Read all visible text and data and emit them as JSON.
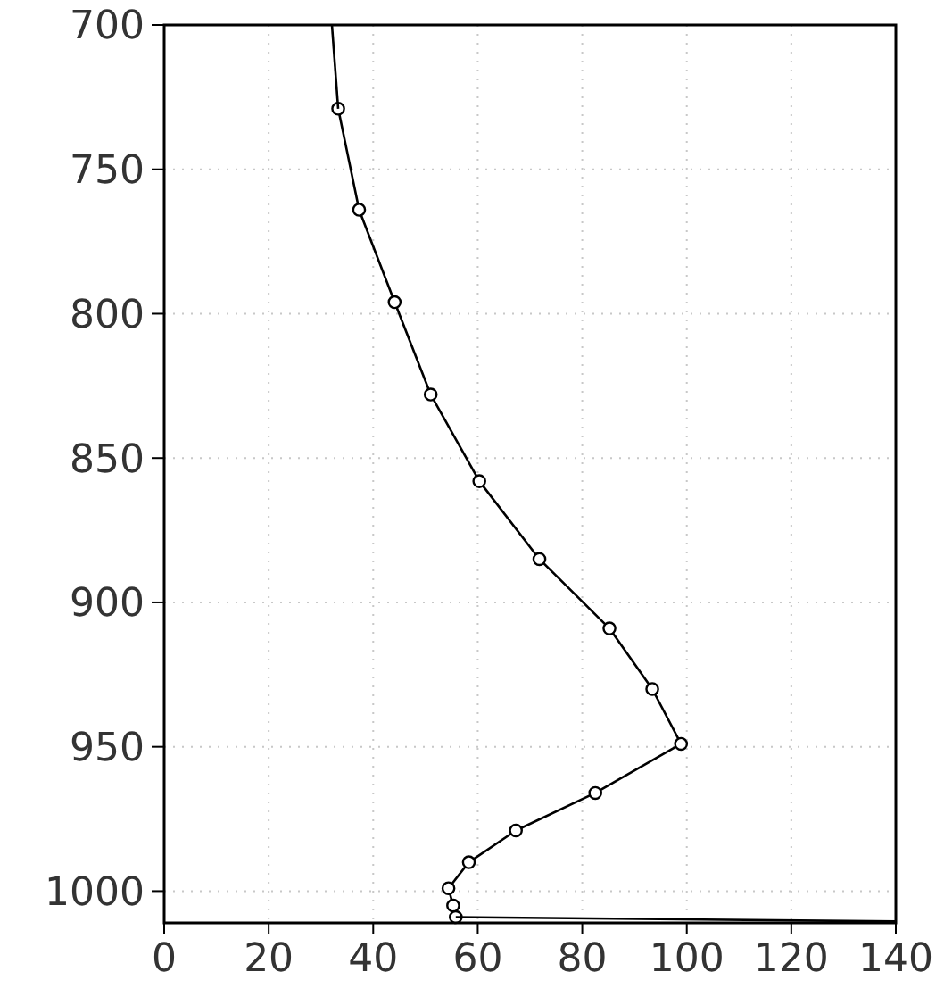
{
  "chart_data": {
    "type": "line",
    "xlim": [
      0,
      140
    ],
    "xticks": [
      0,
      20,
      40,
      60,
      80,
      100,
      120,
      140
    ],
    "ylim": [
      1011,
      700
    ],
    "yticks": [
      700,
      750,
      800,
      850,
      900,
      950,
      1000
    ],
    "grid": true,
    "line_style": "solid",
    "series": [
      {
        "color": "#000000",
        "marker": "circle",
        "x": [
          33.3,
          37.3,
          44.1,
          51.0,
          60.3,
          71.8,
          85.2,
          93.4,
          98.9,
          82.5,
          67.3,
          58.3,
          54.4,
          55.3,
          55.8
        ],
        "values": [
          729,
          764,
          796,
          828,
          858,
          885,
          909,
          930,
          949,
          966,
          979,
          990,
          999,
          1005,
          1009
        ]
      },
      {
        "color": "#000000",
        "marker": "none",
        "x": [
          32.1,
          33.3
        ],
        "values": [
          700,
          729
        ]
      },
      {
        "color": "#000000",
        "marker": "none",
        "x": [
          55.8,
          140
        ],
        "values": [
          1009,
          1010.5
        ]
      }
    ]
  }
}
